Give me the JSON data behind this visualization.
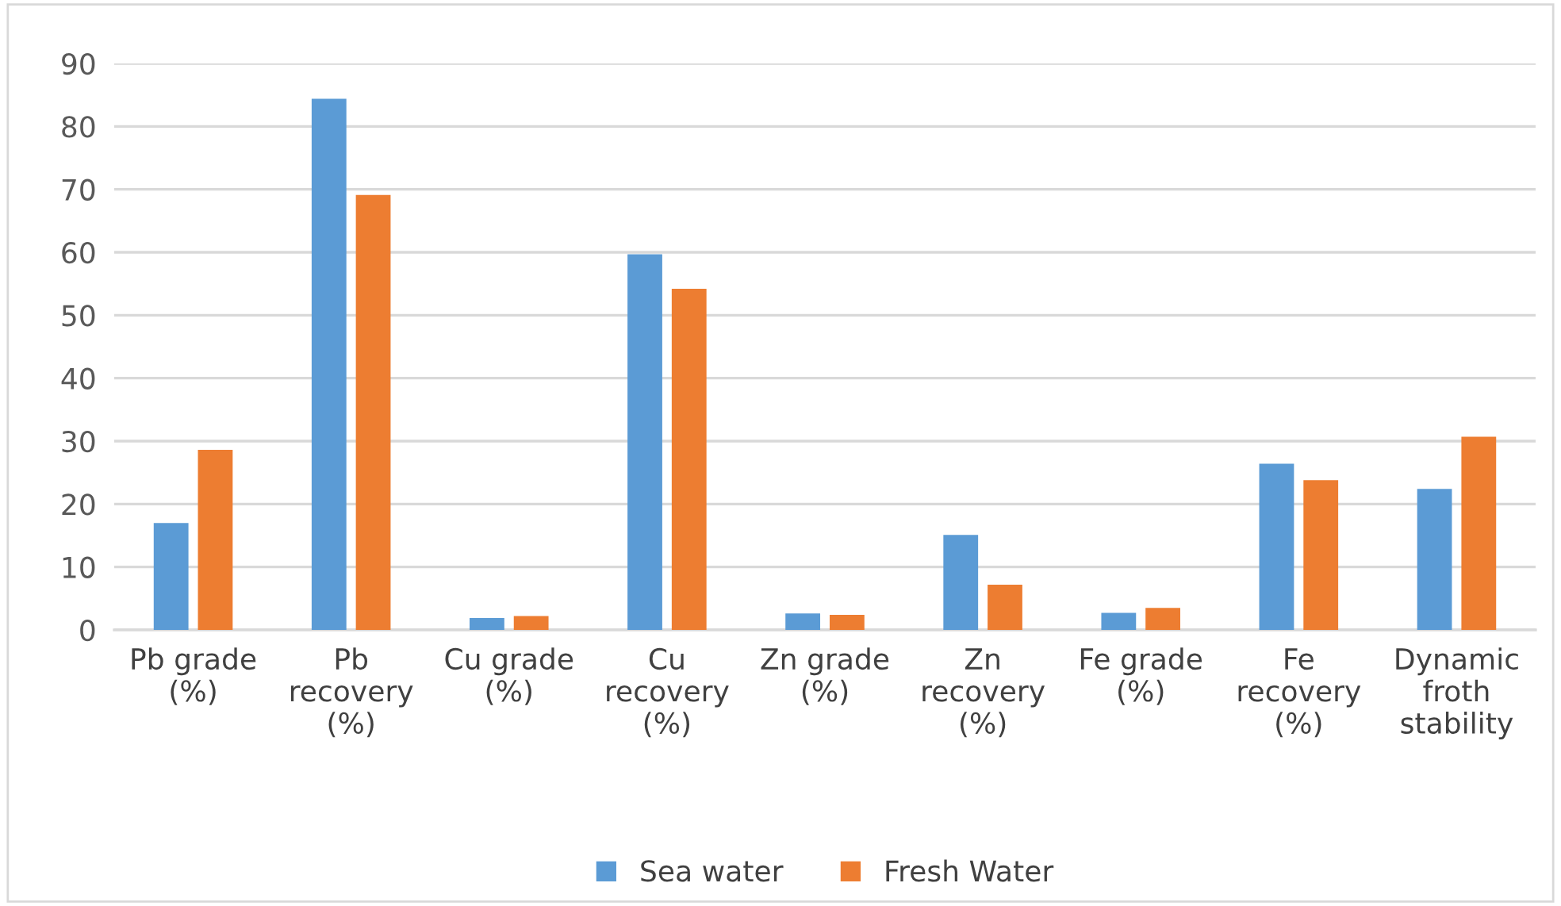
{
  "chart_data": {
    "type": "bar",
    "categories": [
      "Pb grade\n(%)",
      "Pb\nrecovery\n(%)",
      "Cu grade\n(%)",
      "Cu\nrecovery\n(%)",
      "Zn grade\n(%)",
      "Zn\nrecovery\n(%)",
      "Fe grade\n(%)",
      "Fe\nrecovery\n(%)",
      "Dynamic\nfroth\nstability"
    ],
    "series": [
      {
        "name": "Sea water",
        "color": "#5b9bd5",
        "values": [
          17.0,
          84.4,
          1.9,
          59.7,
          2.6,
          15.1,
          2.7,
          26.4,
          22.4
        ]
      },
      {
        "name": "Fresh Water",
        "color": "#ed7d31",
        "values": [
          28.6,
          69.1,
          2.2,
          54.2,
          2.4,
          7.2,
          3.5,
          23.8,
          30.7
        ]
      }
    ],
    "ylim": [
      0,
      90
    ],
    "yticks": [
      0,
      10,
      20,
      30,
      40,
      50,
      60,
      70,
      80,
      90
    ],
    "grid": "y",
    "legend": "bottom"
  }
}
